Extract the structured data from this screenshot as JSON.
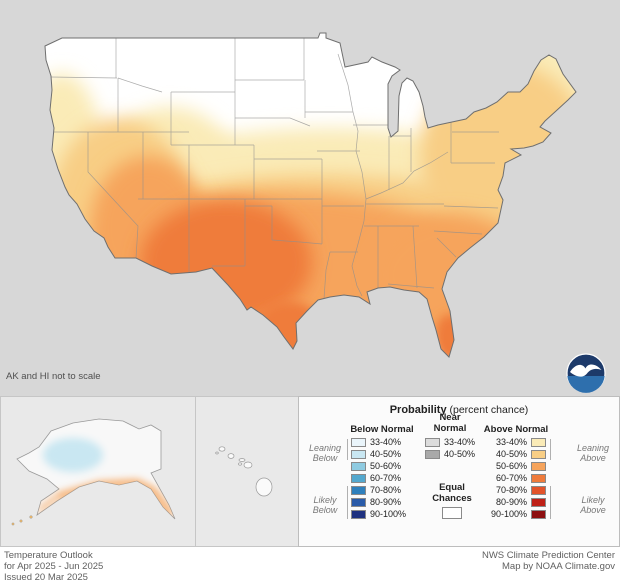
{
  "map": {
    "note": "AK and HI not to scale",
    "background_color": "#d7d7d7",
    "equal_chances_color": "#ffffff",
    "outline_color": "#6f6f6f"
  },
  "icons": {
    "noaa_logo": "noaa-circular-seagull-logo"
  },
  "legend": {
    "title": "Probability",
    "title_suffix": "(percent chance)",
    "columns": {
      "below": {
        "header": "Below Normal",
        "items": [
          {
            "label": "33-40%",
            "color": "#EAF5FB"
          },
          {
            "label": "40-50%",
            "color": "#C9E7F2"
          },
          {
            "label": "50-60%",
            "color": "#8FCBE1"
          },
          {
            "label": "60-70%",
            "color": "#54A8CE"
          },
          {
            "label": "70-80%",
            "color": "#2F80BC"
          },
          {
            "label": "80-90%",
            "color": "#2A5BA8"
          },
          {
            "label": "90-100%",
            "color": "#1F3280"
          }
        ],
        "leaning_label": "Leaning Below",
        "likely_label": "Likely Below"
      },
      "near": {
        "header_line1": "Near",
        "header_line2": "Normal",
        "items": [
          {
            "label": "33-40%",
            "color": "#DCDCDC"
          },
          {
            "label": "40-50%",
            "color": "#A9A9A9"
          }
        ],
        "equal_line1": "Equal",
        "equal_line2": "Chances",
        "equal_color": "#FFFFFF"
      },
      "above": {
        "header": "Above Normal",
        "items": [
          {
            "label": "33-40%",
            "color": "#FAEBB7"
          },
          {
            "label": "40-50%",
            "color": "#F8CE85"
          },
          {
            "label": "50-60%",
            "color": "#F6A45C"
          },
          {
            "label": "60-70%",
            "color": "#EF7B3B"
          },
          {
            "label": "70-80%",
            "color": "#E2532A"
          },
          {
            "label": "80-90%",
            "color": "#BE2017"
          },
          {
            "label": "90-100%",
            "color": "#8C0F10"
          }
        ],
        "leaning_label": "Leaning Above",
        "likely_label": "Likely Above"
      }
    }
  },
  "footer": {
    "left_lines": [
      "Temperature Outlook",
      "for Apr 2025 - Jun 2025",
      "Issued 20 Mar 2025"
    ],
    "right_lines": [
      "NWS Climate Prediction Center",
      "Map by NOAA Climate.gov"
    ]
  }
}
